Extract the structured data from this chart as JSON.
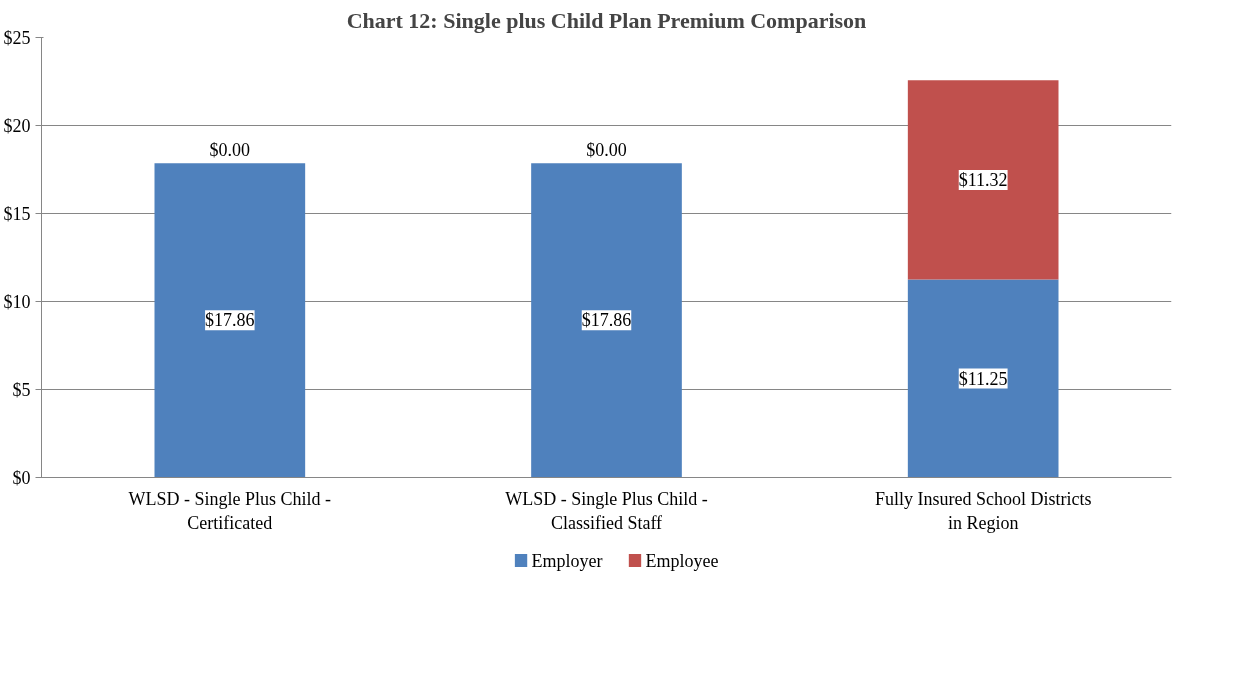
{
  "chart_data": {
    "type": "bar",
    "title": "Chart 12: Single plus Child Plan Premium Comparison",
    "categories": [
      "WLSD - Single Plus Child - Certificated",
      "WLSD - Single Plus Child - Classified Staff",
      "Fully Insured School Districts in Region"
    ],
    "stacked": true,
    "series": [
      {
        "name": "Employer",
        "color": "#4f81bd",
        "values": [
          17.86,
          17.86,
          11.25
        ],
        "value_labels": [
          "$17.86",
          "$17.86",
          "$11.25"
        ]
      },
      {
        "name": "Employee",
        "color": "#c0504d",
        "values": [
          0,
          0,
          11.32
        ],
        "value_labels": [
          "$0.00",
          "$0.00",
          "$11.32"
        ]
      }
    ],
    "ylim": [
      0,
      25
    ],
    "yticks": [
      {
        "value": 0,
        "label": "$0"
      },
      {
        "value": 5,
        "label": "$5"
      },
      {
        "value": 10,
        "label": "$10"
      },
      {
        "value": 15,
        "label": "$15"
      },
      {
        "value": 20,
        "label": "$20"
      },
      {
        "value": 25,
        "label": "$25"
      }
    ],
    "grid": "y",
    "legend": "bottom"
  }
}
